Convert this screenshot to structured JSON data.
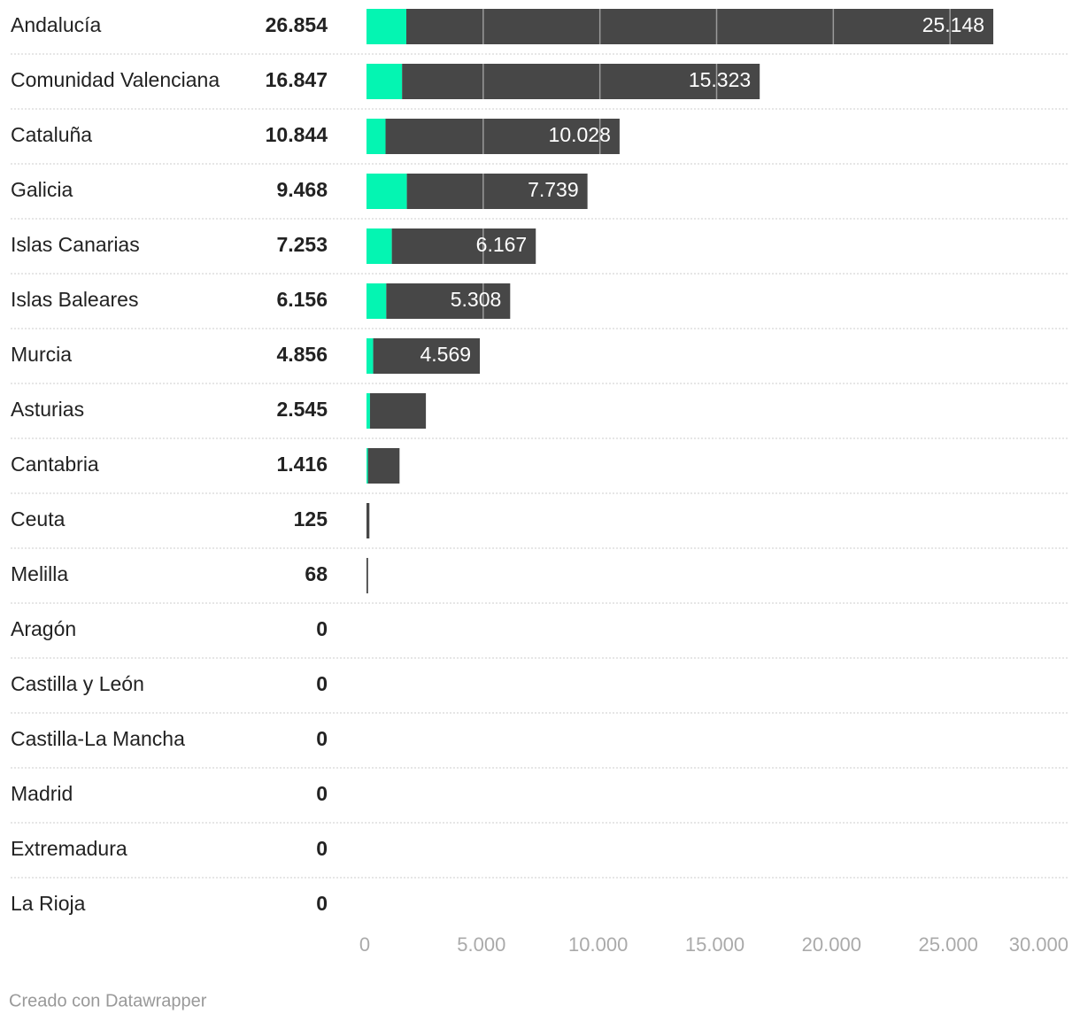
{
  "chart_data": {
    "type": "stacked-bar-horizontal",
    "categories": [
      "Andalucía",
      "Comunidad Valenciana",
      "Cataluña",
      "Galicia",
      "Islas Canarias",
      "Islas Baleares",
      "Murcia",
      "Asturias",
      "Cantabria",
      "Ceuta",
      "Melilla",
      "Aragón",
      "Castilla y León",
      "Castilla-La Mancha",
      "Madrid",
      "Extremadura",
      "La Rioja"
    ],
    "totals": [
      {
        "value": 26854,
        "label": "26.854"
      },
      {
        "value": 16847,
        "label": "16.847"
      },
      {
        "value": 10844,
        "label": "10.844"
      },
      {
        "value": 9468,
        "label": "9.468"
      },
      {
        "value": 7253,
        "label": "7.253"
      },
      {
        "value": 6156,
        "label": "6.156"
      },
      {
        "value": 4856,
        "label": "4.856"
      },
      {
        "value": 2545,
        "label": "2.545"
      },
      {
        "value": 1416,
        "label": "1.416"
      },
      125,
      68,
      0,
      0,
      0,
      0,
      0,
      0
    ],
    "series": [
      {
        "color": "#04f5b2",
        "values": [
          1706,
          1524,
          816,
          1729,
          1086,
          848,
          287,
          150,
          60,
          0,
          0,
          0,
          0,
          0,
          0,
          0,
          0
        ]
      },
      {
        "color": "#474747",
        "values": [
          25148,
          15323,
          10028,
          7739,
          6167,
          5308,
          4569,
          2395,
          1356,
          125,
          68,
          0,
          0,
          0,
          0,
          0,
          0
        ],
        "value_labels": [
          "25.148",
          "15.323",
          "10.028",
          "7.739",
          "6.167",
          "5.308",
          "4.569",
          null,
          null,
          null,
          null,
          null,
          null,
          null,
          null,
          null,
          null
        ]
      }
    ],
    "xlim": [
      0,
      30000
    ],
    "xticks": [
      0,
      {
        "value": 5000,
        "label": "5.000"
      },
      {
        "value": 10000,
        "label": "10.000"
      },
      {
        "value": 15000,
        "label": "15.000"
      },
      {
        "value": 20000,
        "label": "20.000"
      },
      {
        "value": 25000,
        "label": "25.000"
      },
      {
        "value": 30000,
        "label": "30.000"
      }
    ],
    "grid": true,
    "footer": "Creado con Datawrapper"
  }
}
